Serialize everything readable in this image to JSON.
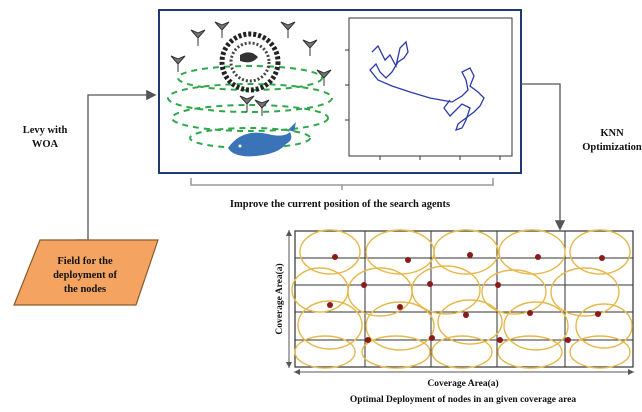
{
  "labels": {
    "levy_line1": "Levy with",
    "levy_line2": "WOA",
    "knn_line1": "KNN",
    "knn_line2": "Optimization",
    "improve": "Improve the current position of the search agents",
    "field_line1": "Field for the",
    "field_line2": "deployment of",
    "field_line3": "the nodes",
    "coverage_x": "Coverage Area(a)",
    "coverage_y": "Coverage Area(a)",
    "caption": "Optimal Deployment of nodes in an given coverage area"
  },
  "colors": {
    "frame": "#1f3a6e",
    "arrow": "#555555",
    "field_fill": "#f4a460",
    "grid_line": "#333333",
    "coverage_circle": "#e6b84a",
    "node": "#8b1a1a",
    "whale": "#3a73b8",
    "orbit": "#2ea84a",
    "trajectory": "#2a3ab0"
  },
  "icons": [
    "bird-icon",
    "whale-icon",
    "flock-icon"
  ]
}
